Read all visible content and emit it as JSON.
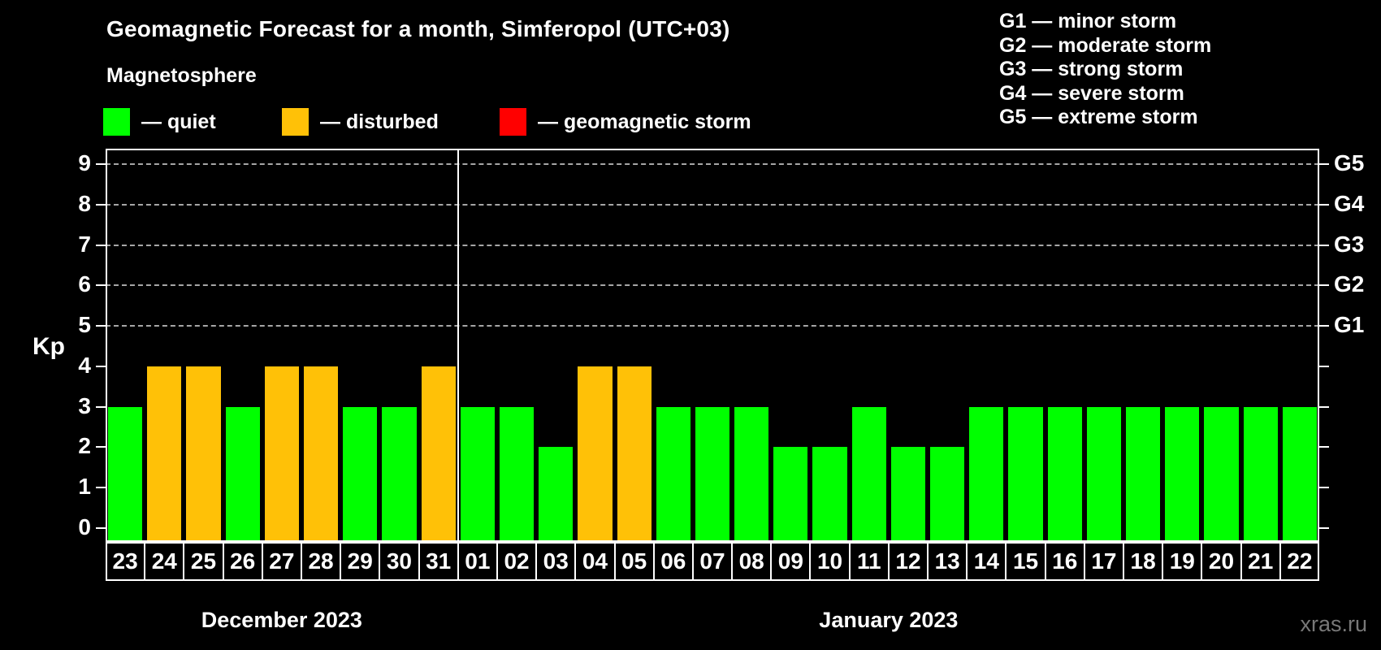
{
  "header": {
    "title": "Geomagnetic Forecast for a month, Simferopol (UTC+03)",
    "subtitle": "Magnetosphere"
  },
  "status_legend": [
    {
      "name": "quiet",
      "label": "— quiet",
      "color": "#00ff00"
    },
    {
      "name": "disturbed",
      "label": "— disturbed",
      "color": "#ffc107"
    },
    {
      "name": "storm",
      "label": "— geomagnetic storm",
      "color": "#ff0000"
    }
  ],
  "storm_scale_legend": [
    {
      "code": "G1",
      "label": "G1 — minor storm"
    },
    {
      "code": "G2",
      "label": "G2 — moderate storm"
    },
    {
      "code": "G3",
      "label": "G3 — strong storm"
    },
    {
      "code": "G4",
      "label": "G4 — severe storm"
    },
    {
      "code": "G5",
      "label": "G5 — extreme storm"
    }
  ],
  "watermark": "xras.ru",
  "chart_data": {
    "type": "bar",
    "title": "Geomagnetic Forecast for a month, Simferopol (UTC+03)",
    "subtitle": "Magnetosphere",
    "ylabel": "Kp",
    "ylim": [
      0,
      9
    ],
    "yticks": [
      0,
      1,
      2,
      3,
      4,
      5,
      6,
      7,
      8,
      9
    ],
    "gridlines_kp": [
      5,
      6,
      7,
      8,
      9
    ],
    "grid_style": "dashed",
    "grid_color": "#a6a6a6",
    "right_axis": [
      {
        "kp": 9,
        "label": "G5"
      },
      {
        "kp": 8,
        "label": "G4"
      },
      {
        "kp": 7,
        "label": "G3"
      },
      {
        "kp": 6,
        "label": "G2"
      },
      {
        "kp": 5,
        "label": "G1"
      }
    ],
    "colors": {
      "quiet": "#00ff00",
      "disturbed": "#ffc107",
      "storm": "#ff0000"
    },
    "months": [
      {
        "label": "December 2023",
        "days": [
          {
            "day": "23",
            "kp": 3,
            "status": "quiet"
          },
          {
            "day": "24",
            "kp": 4,
            "status": "disturbed"
          },
          {
            "day": "25",
            "kp": 4,
            "status": "disturbed"
          },
          {
            "day": "26",
            "kp": 3,
            "status": "quiet"
          },
          {
            "day": "27",
            "kp": 4,
            "status": "disturbed"
          },
          {
            "day": "28",
            "kp": 4,
            "status": "disturbed"
          },
          {
            "day": "29",
            "kp": 3,
            "status": "quiet"
          },
          {
            "day": "30",
            "kp": 3,
            "status": "quiet"
          },
          {
            "day": "31",
            "kp": 4,
            "status": "disturbed"
          }
        ]
      },
      {
        "label": "January 2023",
        "days": [
          {
            "day": "01",
            "kp": 3,
            "status": "quiet"
          },
          {
            "day": "02",
            "kp": 3,
            "status": "quiet"
          },
          {
            "day": "03",
            "kp": 2,
            "status": "quiet"
          },
          {
            "day": "04",
            "kp": 4,
            "status": "disturbed"
          },
          {
            "day": "05",
            "kp": 4,
            "status": "disturbed"
          },
          {
            "day": "06",
            "kp": 3,
            "status": "quiet"
          },
          {
            "day": "07",
            "kp": 3,
            "status": "quiet"
          },
          {
            "day": "08",
            "kp": 3,
            "status": "quiet"
          },
          {
            "day": "09",
            "kp": 2,
            "status": "quiet"
          },
          {
            "day": "10",
            "kp": 2,
            "status": "quiet"
          },
          {
            "day": "11",
            "kp": 3,
            "status": "quiet"
          },
          {
            "day": "12",
            "kp": 2,
            "status": "quiet"
          },
          {
            "day": "13",
            "kp": 2,
            "status": "quiet"
          },
          {
            "day": "14",
            "kp": 3,
            "status": "quiet"
          },
          {
            "day": "15",
            "kp": 3,
            "status": "quiet"
          },
          {
            "day": "16",
            "kp": 3,
            "status": "quiet"
          },
          {
            "day": "17",
            "kp": 3,
            "status": "quiet"
          },
          {
            "day": "18",
            "kp": 3,
            "status": "quiet"
          },
          {
            "day": "19",
            "kp": 3,
            "status": "quiet"
          },
          {
            "day": "20",
            "kp": 3,
            "status": "quiet"
          },
          {
            "day": "21",
            "kp": 3,
            "status": "quiet"
          },
          {
            "day": "22",
            "kp": 3,
            "status": "quiet"
          }
        ]
      }
    ]
  }
}
